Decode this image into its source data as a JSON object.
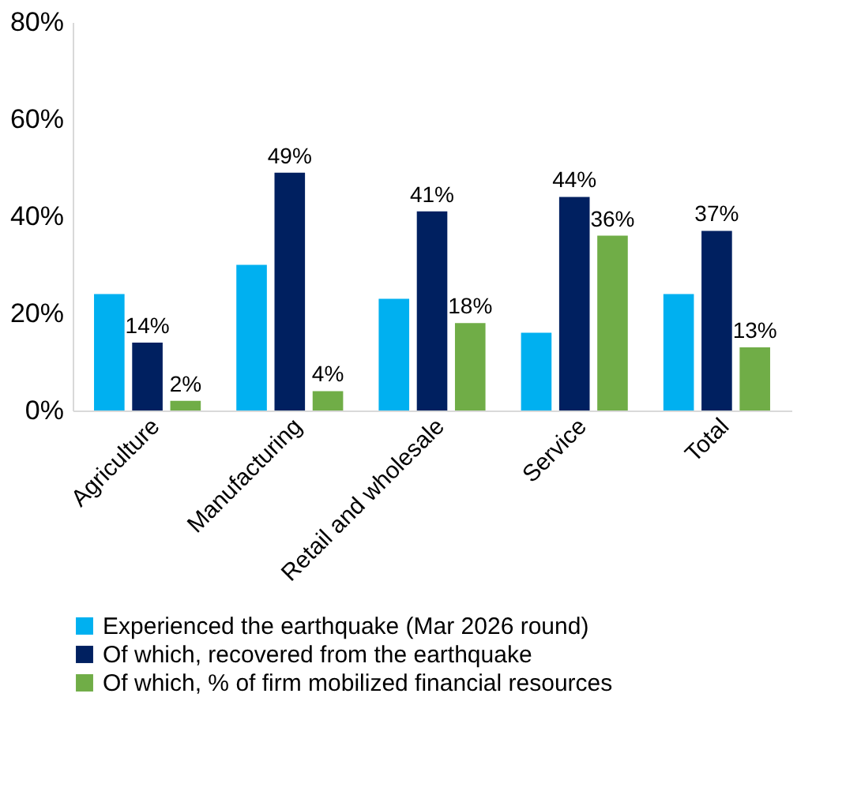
{
  "chart_data": {
    "type": "bar",
    "categories": [
      "Agriculture",
      "Manufacturing",
      "Retail and wholesale",
      "Service",
      "Total"
    ],
    "series": [
      {
        "name": "Experienced the earthquake (Mar 2026 round)",
        "color": "#00b0f0",
        "values": [
          0.24,
          0.3,
          0.23,
          0.16,
          0.24
        ]
      },
      {
        "name": "Of which, recovered from the earthquake",
        "color": "#002060",
        "values": [
          0.14,
          0.49,
          0.41,
          0.44,
          0.37
        ],
        "value_labels": [
          "14%",
          "49%",
          "41%",
          "44%",
          "37%"
        ]
      },
      {
        "name": "Of which, % of firm mobilized financial resources",
        "color": "#70ad47",
        "values": [
          0.02,
          0.04,
          0.18,
          0.36,
          0.13
        ],
        "value_labels": [
          "2%",
          "4%",
          "18%",
          "36%",
          "13%"
        ]
      }
    ],
    "ylim": [
      0,
      0.8
    ],
    "yticks": [
      {
        "value": 0,
        "label": "0%"
      },
      {
        "value": 0.2,
        "label": "20%"
      },
      {
        "value": 0.4,
        "label": "40%"
      },
      {
        "value": 0.6,
        "label": "60%"
      },
      {
        "value": 0.8,
        "label": "80%"
      }
    ],
    "grid": false,
    "legend": "bottom"
  }
}
